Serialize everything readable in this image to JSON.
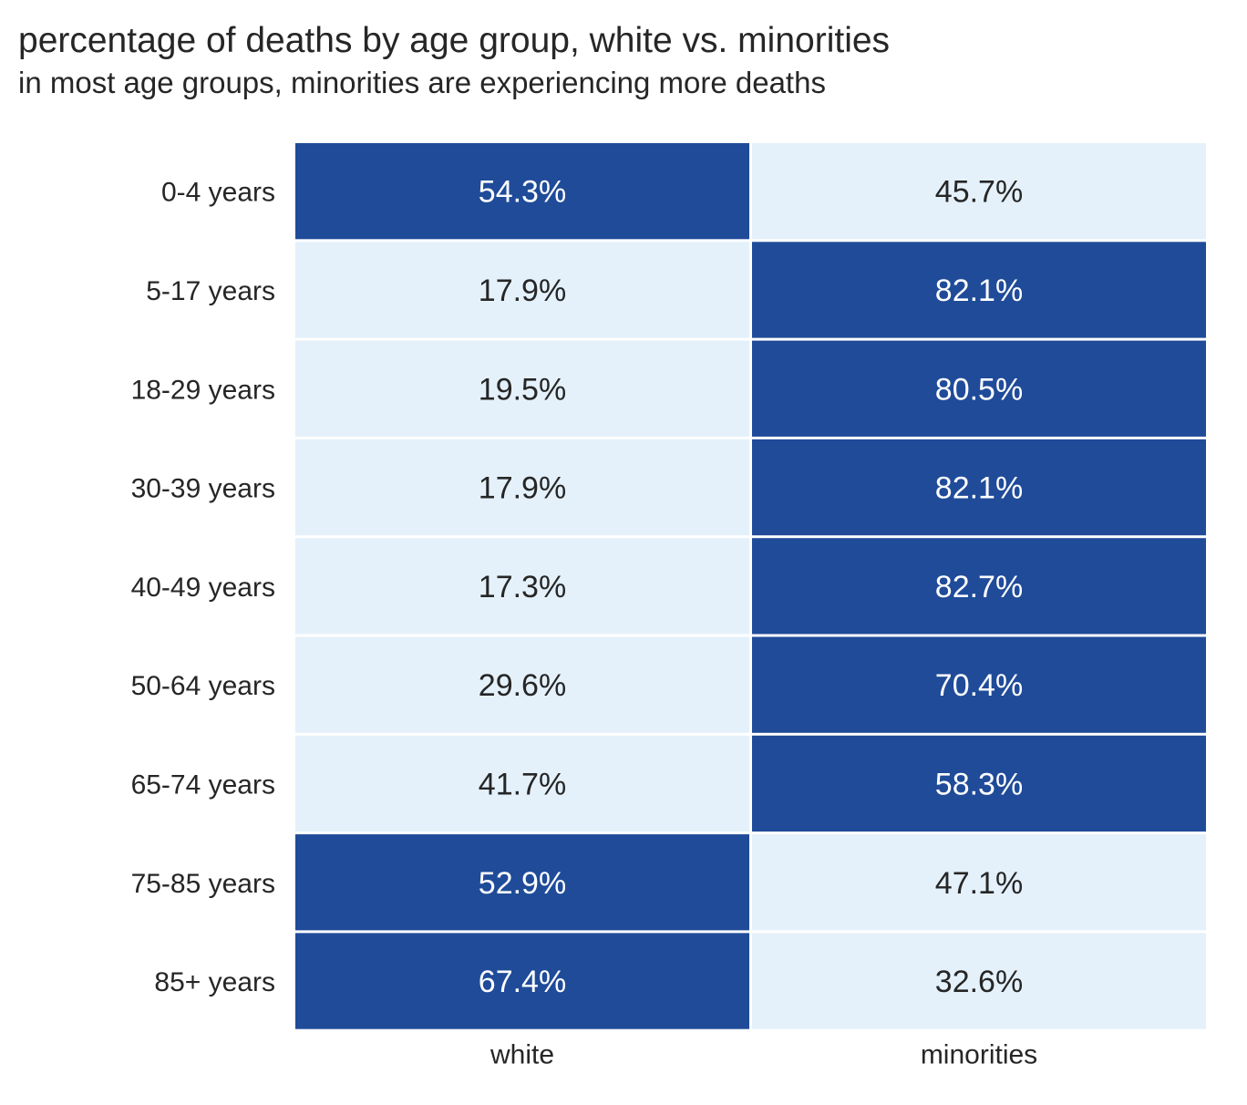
{
  "chart_data": {
    "type": "heatmap",
    "title": "percentage of deaths by age group, white vs. minorities",
    "subtitle": "in most age groups, minorities are experiencing more deaths",
    "columns": [
      "white",
      "minorities"
    ],
    "rows": [
      "0-4 years",
      "5-17 years",
      "18-29 years",
      "30-39 years",
      "40-49 years",
      "50-64 years",
      "65-74 years",
      "75-85 years",
      "85+ years"
    ],
    "values": [
      [
        54.3,
        45.7
      ],
      [
        17.9,
        82.1
      ],
      [
        19.5,
        80.5
      ],
      [
        17.9,
        82.1
      ],
      [
        17.3,
        82.7
      ],
      [
        29.6,
        70.4
      ],
      [
        41.7,
        58.3
      ],
      [
        52.9,
        47.1
      ],
      [
        67.4,
        32.6
      ]
    ],
    "cell_labels": [
      [
        "54.3%",
        "45.7%"
      ],
      [
        "17.9%",
        "82.1%"
      ],
      [
        "19.5%",
        "80.5%"
      ],
      [
        "17.9%",
        "82.1%"
      ],
      [
        "17.3%",
        "82.7%"
      ],
      [
        "29.6%",
        "70.4%"
      ],
      [
        "41.7%",
        "58.3%"
      ],
      [
        "52.9%",
        "47.1%"
      ],
      [
        "67.4%",
        "32.6%"
      ]
    ],
    "threshold": 50,
    "colors": {
      "high": "#1f4b99",
      "low": "#e4f1fb",
      "text_high": "#ffffff",
      "text_low": "#262626",
      "grid": "#ffffff"
    },
    "colorbar": false
  }
}
